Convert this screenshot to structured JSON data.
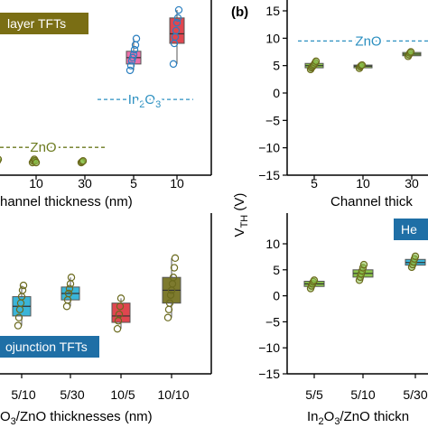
{
  "panel_label_b": "(b)",
  "colors": {
    "zno_line": "#6b7a1e",
    "in2o3_line": "#2b8fc0",
    "box_pink": "#ec6fa8",
    "box_red": "#e0464f",
    "box_cyan": "#3ab5d8",
    "box_olive": "#7d7a2e",
    "point_green": "#8bc34a",
    "point_olive_edge": "#6b6a1e",
    "point_blue_edge": "#2b7fc0",
    "badge_olive": "#7a6e14",
    "badge_blue": "#1f6fa6"
  },
  "chart_data": [
    {
      "id": "top-left",
      "type": "box",
      "badge": "layer TFTs",
      "categories": [
        "5",
        "10",
        "30",
        "5",
        "10"
      ],
      "xlabel": "hannel thickness (nm)",
      "ylabel": "",
      "reference_lines": [
        {
          "label": "ZnO",
          "style": "dashed",
          "color": "#6b7a1e",
          "y": 0.05
        },
        {
          "label": "In₂O₃",
          "label_main": "In",
          "label_sub": "2",
          "label_main2": "O",
          "label_sub2": "3",
          "style": "dashed",
          "color": "#2b8fc0",
          "y": 0.38
        }
      ],
      "series": [
        {
          "group": "ZnO",
          "category": "5",
          "median": 0.01,
          "points": [
            0.0,
            0.01,
            0.02
          ]
        },
        {
          "group": "ZnO",
          "category": "10",
          "median": 0.01,
          "points": [
            0.0,
            0.01,
            0.02,
            0.01,
            0.0
          ]
        },
        {
          "group": "ZnO",
          "category": "30",
          "median": 0.005,
          "points": [
            0.0,
            0.005,
            0.01
          ]
        },
        {
          "group": "In2O3",
          "category": "5",
          "q1": 0.62,
          "median": 0.66,
          "q3": 0.7,
          "min": 0.58,
          "max": 0.78,
          "points": [
            0.58,
            0.61,
            0.64,
            0.66,
            0.68,
            0.71,
            0.74,
            0.78
          ]
        },
        {
          "group": "In2O3",
          "category": "10",
          "q1": 0.75,
          "median": 0.81,
          "q3": 0.91,
          "min": 0.62,
          "max": 0.96,
          "points": [
            0.62,
            0.75,
            0.79,
            0.83,
            0.88,
            0.91,
            0.96
          ]
        }
      ]
    },
    {
      "id": "top-right",
      "type": "box",
      "ylabel": "V",
      "ylabel_sub": "TH",
      "ylabel_unit": " (V)",
      "xlabel": "Channel thick",
      "categories": [
        "5",
        "10",
        "30"
      ],
      "yticks": [
        15,
        10,
        5,
        0,
        -5,
        -10,
        -15
      ],
      "ylim": [
        -15,
        15
      ],
      "reference_lines": [
        {
          "label": "ZnO",
          "style": "dashed",
          "color": "#2b8fc0",
          "y": 9.5
        }
      ],
      "series": [
        {
          "category": "5",
          "q1": 4.6,
          "median": 5.0,
          "q3": 5.4,
          "points": [
            4.3,
            4.6,
            4.8,
            5.0,
            5.2,
            5.5,
            5.8
          ]
        },
        {
          "category": "10",
          "q1": 4.6,
          "median": 4.9,
          "q3": 5.1,
          "points": [
            4.5,
            4.8,
            5.0,
            5.1
          ]
        },
        {
          "category": "30",
          "q1": 6.8,
          "median": 7.1,
          "q3": 7.4,
          "points": [
            6.7,
            7.0,
            7.3,
            7.5
          ]
        }
      ]
    },
    {
      "id": "bottom-left",
      "type": "box",
      "badge": "ojunction TFTs",
      "xlabel": "O₃/ZnO thicknesses (nm)",
      "xlabel_main": "O",
      "xlabel_sub": "3",
      "xlabel_rest": "/ZnO thicknesses (nm)",
      "categories": [
        "5/10",
        "5/30",
        "10/5",
        "10/10"
      ],
      "series": [
        {
          "category": "5/10",
          "color": "#3ab5d8",
          "q1": 0.36,
          "median": 0.42,
          "q3": 0.48,
          "points": [
            0.3,
            0.35,
            0.4,
            0.44,
            0.48,
            0.52,
            0.55
          ]
        },
        {
          "category": "5/30",
          "color": "#3ab5d8",
          "q1": 0.46,
          "median": 0.5,
          "q3": 0.54,
          "points": [
            0.42,
            0.46,
            0.5,
            0.53,
            0.56,
            0.6
          ]
        },
        {
          "category": "10/5",
          "color": "#e0464f",
          "q1": 0.32,
          "median": 0.36,
          "q3": 0.44,
          "points": [
            0.28,
            0.33,
            0.37,
            0.42,
            0.47
          ]
        },
        {
          "category": "10/10",
          "color": "#7d7a2e",
          "q1": 0.44,
          "median": 0.52,
          "q3": 0.6,
          "points": [
            0.35,
            0.4,
            0.44,
            0.49,
            0.52,
            0.56,
            0.6,
            0.66,
            0.72
          ]
        }
      ]
    },
    {
      "id": "bottom-right",
      "type": "box",
      "badge": "He",
      "xlabel": "In₂O₃/ZnO thickn",
      "xlabel_main": "In",
      "xlabel_sub": "2",
      "xlabel_main2": "O",
      "xlabel_sub2": "3",
      "xlabel_rest": "/ZnO thickn",
      "categories": [
        "5/5",
        "5/10",
        "5/30"
      ],
      "yticks": [
        10,
        5,
        0,
        -5,
        -10,
        -15
      ],
      "ylim": [
        -15,
        10
      ],
      "series": [
        {
          "category": "5/5",
          "color": "#8bc34a",
          "q1": 1.8,
          "median": 2.3,
          "q3": 2.8,
          "points": [
            1.4,
            1.9,
            2.3,
            2.7,
            3.0
          ]
        },
        {
          "category": "5/10",
          "color": "#8bc34a",
          "q1": 3.6,
          "median": 4.3,
          "q3": 5.0,
          "points": [
            3.0,
            3.6,
            4.2,
            4.8,
            5.4,
            6.0
          ]
        },
        {
          "category": "5/30",
          "color": "#3ab5d8",
          "q1": 5.9,
          "median": 6.4,
          "q3": 7.0,
          "points": [
            5.5,
            6.0,
            6.5,
            7.1,
            7.6
          ]
        }
      ]
    }
  ]
}
